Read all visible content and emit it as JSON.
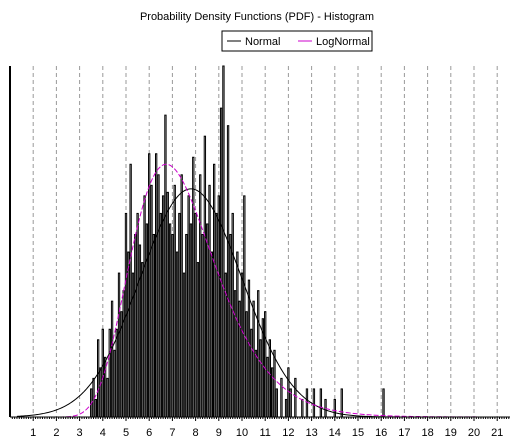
{
  "chart_data": {
    "type": "bar",
    "title": "Probability Density Functions (PDF) - Histogram",
    "xlabel": "",
    "ylabel": "",
    "xlim": [
      0,
      21.6
    ],
    "ylim": [
      0,
      1
    ],
    "x_ticks": [
      1,
      2,
      3,
      4,
      5,
      6,
      7,
      8,
      9,
      10,
      11,
      12,
      13,
      14,
      15,
      16,
      17,
      18,
      19,
      20,
      21
    ],
    "grid": {
      "vertical": "dashed",
      "horizontal": false
    },
    "legend_placement": "top-right",
    "histogram": {
      "bin_width": 0.1,
      "bins": [
        {
          "x": 3.5,
          "h": 0.08
        },
        {
          "x": 3.6,
          "h": 0.11
        },
        {
          "x": 3.7,
          "h": 0.05
        },
        {
          "x": 3.8,
          "h": 0.22
        },
        {
          "x": 3.9,
          "h": 0.14
        },
        {
          "x": 4.0,
          "h": 0.25
        },
        {
          "x": 4.1,
          "h": 0.17
        },
        {
          "x": 4.2,
          "h": 0.11
        },
        {
          "x": 4.3,
          "h": 0.25
        },
        {
          "x": 4.4,
          "h": 0.33
        },
        {
          "x": 4.5,
          "h": 0.19
        },
        {
          "x": 4.6,
          "h": 0.25
        },
        {
          "x": 4.7,
          "h": 0.41
        },
        {
          "x": 4.8,
          "h": 0.3
        },
        {
          "x": 4.9,
          "h": 0.36
        },
        {
          "x": 5.0,
          "h": 0.58
        },
        {
          "x": 5.1,
          "h": 0.47
        },
        {
          "x": 5.2,
          "h": 0.72
        },
        {
          "x": 5.3,
          "h": 0.41
        },
        {
          "x": 5.4,
          "h": 0.52
        },
        {
          "x": 5.5,
          "h": 0.58
        },
        {
          "x": 5.6,
          "h": 0.49
        },
        {
          "x": 5.7,
          "h": 0.44
        },
        {
          "x": 5.8,
          "h": 0.63
        },
        {
          "x": 5.9,
          "h": 0.55
        },
        {
          "x": 6.0,
          "h": 0.75
        },
        {
          "x": 6.1,
          "h": 0.66
        },
        {
          "x": 6.2,
          "h": 0.52
        },
        {
          "x": 6.3,
          "h": 0.75
        },
        {
          "x": 6.4,
          "h": 0.69
        },
        {
          "x": 6.5,
          "h": 0.58
        },
        {
          "x": 6.6,
          "h": 0.63
        },
        {
          "x": 6.7,
          "h": 0.86
        },
        {
          "x": 6.8,
          "h": 0.64
        },
        {
          "x": 6.9,
          "h": 0.55
        },
        {
          "x": 7.0,
          "h": 0.52
        },
        {
          "x": 7.1,
          "h": 0.66
        },
        {
          "x": 7.2,
          "h": 0.47
        },
        {
          "x": 7.3,
          "h": 0.58
        },
        {
          "x": 7.4,
          "h": 0.69
        },
        {
          "x": 7.5,
          "h": 0.41
        },
        {
          "x": 7.6,
          "h": 0.52
        },
        {
          "x": 7.7,
          "h": 0.63
        },
        {
          "x": 7.8,
          "h": 0.55
        },
        {
          "x": 7.9,
          "h": 0.74
        },
        {
          "x": 8.0,
          "h": 0.58
        },
        {
          "x": 8.1,
          "h": 0.44
        },
        {
          "x": 8.2,
          "h": 0.69
        },
        {
          "x": 8.3,
          "h": 0.52
        },
        {
          "x": 8.4,
          "h": 0.8
        },
        {
          "x": 8.5,
          "h": 0.55
        },
        {
          "x": 8.6,
          "h": 0.66
        },
        {
          "x": 8.7,
          "h": 0.47
        },
        {
          "x": 8.8,
          "h": 0.72
        },
        {
          "x": 8.9,
          "h": 0.58
        },
        {
          "x": 9.0,
          "h": 0.63
        },
        {
          "x": 9.1,
          "h": 0.88
        },
        {
          "x": 9.2,
          "h": 1.0
        },
        {
          "x": 9.3,
          "h": 0.41
        },
        {
          "x": 9.4,
          "h": 0.83
        },
        {
          "x": 9.5,
          "h": 0.52
        },
        {
          "x": 9.6,
          "h": 0.58
        },
        {
          "x": 9.7,
          "h": 0.36
        },
        {
          "x": 9.8,
          "h": 0.47
        },
        {
          "x": 9.9,
          "h": 0.33
        },
        {
          "x": 10.0,
          "h": 0.41
        },
        {
          "x": 10.1,
          "h": 0.63
        },
        {
          "x": 10.2,
          "h": 0.3
        },
        {
          "x": 10.3,
          "h": 0.39
        },
        {
          "x": 10.4,
          "h": 0.25
        },
        {
          "x": 10.5,
          "h": 0.33
        },
        {
          "x": 10.6,
          "h": 0.19
        },
        {
          "x": 10.7,
          "h": 0.36
        },
        {
          "x": 10.8,
          "h": 0.22
        },
        {
          "x": 10.9,
          "h": 0.28
        },
        {
          "x": 11.0,
          "h": 0.3
        },
        {
          "x": 11.1,
          "h": 0.17
        },
        {
          "x": 11.2,
          "h": 0.22
        },
        {
          "x": 11.3,
          "h": 0.14
        },
        {
          "x": 11.4,
          "h": 0.19
        },
        {
          "x": 11.5,
          "h": 0.08
        },
        {
          "x": 11.7,
          "h": 0.11
        },
        {
          "x": 11.9,
          "h": 0.05
        },
        {
          "x": 12.0,
          "h": 0.14
        },
        {
          "x": 12.1,
          "h": 0.08
        },
        {
          "x": 12.3,
          "h": 0.11
        },
        {
          "x": 12.6,
          "h": 0.05
        },
        {
          "x": 12.8,
          "h": 0.08
        },
        {
          "x": 13.1,
          "h": 0.08
        },
        {
          "x": 13.4,
          "h": 0.08
        },
        {
          "x": 13.6,
          "h": 0.05
        },
        {
          "x": 14.0,
          "h": 0.05
        },
        {
          "x": 14.3,
          "h": 0.08
        },
        {
          "x": 16.1,
          "h": 0.08
        }
      ]
    },
    "series": [
      {
        "name": "Normal",
        "color": "#000000",
        "distribution": "normal",
        "mean": 7.8,
        "sd": 2.2,
        "peak": 0.65
      },
      {
        "name": "LogNormal",
        "color": "#cc00cc",
        "distribution": "lognormal",
        "mu": 1.98,
        "sigma": 0.27,
        "peak": 0.72
      }
    ]
  }
}
